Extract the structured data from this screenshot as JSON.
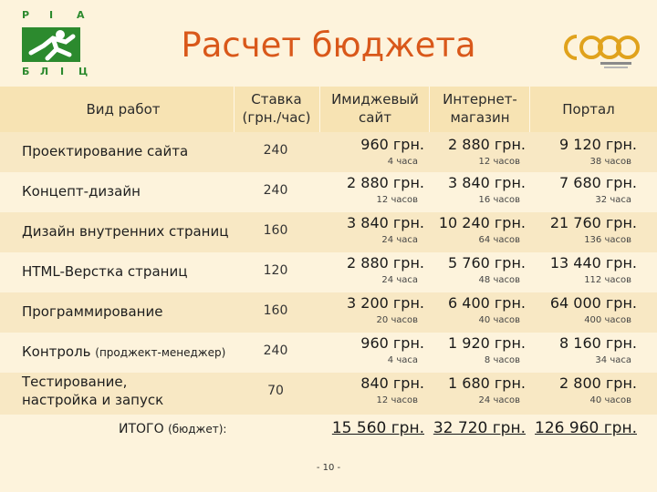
{
  "logo_left": {
    "letters": [
      "Р",
      "І",
      "А",
      "Б",
      "Л",
      "І",
      "Ц"
    ]
  },
  "title": "Расчет бюджета",
  "header": {
    "work_type": "Вид работ",
    "rate": [
      "Ставка",
      "(грн./час)"
    ],
    "image_site": [
      "Имиджевый",
      "сайт"
    ],
    "eshop": [
      "Интернет-",
      "магазин"
    ],
    "portal": "Портал"
  },
  "rows": [
    {
      "name": "Проектирование сайта",
      "rate": "240",
      "image_site": {
        "cost": "960 грн.",
        "hours": "4 часа"
      },
      "eshop": {
        "cost": "2 880 грн.",
        "hours": "12 часов"
      },
      "portal": {
        "cost": "9 120 грн.",
        "hours": "38 часов"
      }
    },
    {
      "name": "Концепт-дизайн",
      "rate": "240",
      "image_site": {
        "cost": "2 880 грн.",
        "hours": "12 часов"
      },
      "eshop": {
        "cost": "3 840 грн.",
        "hours": "16 часов"
      },
      "portal": {
        "cost": "7 680 грн.",
        "hours": "32 часа"
      }
    },
    {
      "name": "Дизайн внутренних страниц",
      "rate": "160",
      "image_site": {
        "cost": "3 840 грн.",
        "hours": "24 часа"
      },
      "eshop": {
        "cost": "10 240 грн.",
        "hours": "64 часов"
      },
      "portal": {
        "cost": "21 760 грн.",
        "hours": "136 часов"
      }
    },
    {
      "name": "HTML-Верстка страниц",
      "rate": "120",
      "image_site": {
        "cost": "2 880 грн.",
        "hours": "24 часа"
      },
      "eshop": {
        "cost": "5 760 грн.",
        "hours": "48 часов"
      },
      "portal": {
        "cost": "13 440 грн.",
        "hours": "112 часов"
      }
    },
    {
      "name": "Программирование",
      "rate": "160",
      "image_site": {
        "cost": "3 200 грн.",
        "hours": "20 часов"
      },
      "eshop": {
        "cost": "6 400 грн.",
        "hours": "40 часов"
      },
      "portal": {
        "cost": "64 000 грн.",
        "hours": "400 часов"
      }
    },
    {
      "name": "Контроль",
      "name_note": "(проджект-менеджер)",
      "rate": "240",
      "image_site": {
        "cost": "960 грн.",
        "hours": "4 часа"
      },
      "eshop": {
        "cost": "1 920 грн.",
        "hours": "8 часов"
      },
      "portal": {
        "cost": "8 160 грн.",
        "hours": "34 часа"
      }
    },
    {
      "name": "Тестирование,",
      "name_line2": "настройка и запуск",
      "rate": "70",
      "image_site": {
        "cost": "840 грн.",
        "hours": "12 часов"
      },
      "eshop": {
        "cost": "1 680 грн.",
        "hours": "24 часов"
      },
      "portal": {
        "cost": "2 800 грн.",
        "hours": "40 часов"
      }
    }
  ],
  "totals": {
    "label": "ИТОГО",
    "label_note": "(бюджет):",
    "image_site": "15 560 грн.",
    "eshop": "32 720 грн.",
    "portal": "126 960 грн."
  },
  "page_number": "- 10 -",
  "colors": {
    "title": "#d9581a",
    "logo_green": "#2c8a2e",
    "logo_gold": "#e0a21c",
    "band": "#f7e3b3"
  }
}
